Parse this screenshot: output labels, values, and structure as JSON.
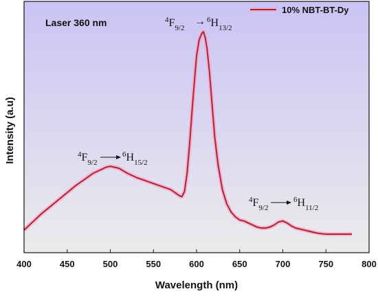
{
  "chart_data": {
    "type": "line",
    "title": "",
    "xlabel": "Wavelength (nm)",
    "ylabel": "Intensity (a.u)",
    "xlim": [
      400,
      800
    ],
    "ylim": [
      0,
      100
    ],
    "x_ticks": [
      400,
      450,
      500,
      550,
      600,
      650,
      700,
      750,
      800
    ],
    "y_ticks_visible": false,
    "grid": false,
    "legend_position": "top-right",
    "colors": {
      "line": "#a52a2a",
      "glow": "#ff9ecf",
      "bg_top": "#c9c4f4",
      "bg_bottom": "#ebebeb"
    },
    "series": [
      {
        "name": "10% NBT-BT-Dy",
        "x": [
          400,
          410,
          420,
          430,
          440,
          450,
          460,
          470,
          480,
          490,
          495,
          500,
          505,
          510,
          520,
          530,
          540,
          550,
          560,
          570,
          575,
          580,
          583,
          586,
          589,
          592,
          595,
          598,
          600,
          603,
          606,
          608,
          610,
          612,
          615,
          618,
          621,
          625,
          630,
          635,
          640,
          645,
          650,
          655,
          660,
          665,
          670,
          675,
          680,
          685,
          690,
          695,
          700,
          705,
          710,
          715,
          720,
          725,
          730,
          735,
          740,
          745,
          750,
          760,
          770,
          780
        ],
        "y": [
          2,
          6,
          10,
          13.5,
          17,
          20.5,
          24,
          27,
          30,
          32,
          33,
          33.5,
          33,
          32.5,
          30,
          28,
          26.5,
          25,
          23.5,
          22,
          20.5,
          19,
          18.5,
          21,
          30,
          45,
          62,
          78,
          88,
          96,
          99,
          100,
          97,
          92,
          80,
          64,
          48,
          34,
          22,
          15,
          11,
          8.5,
          7,
          6.5,
          5.5,
          4.5,
          3.5,
          3,
          3,
          3.5,
          4.5,
          6,
          6.5,
          5.5,
          4,
          3,
          2.5,
          2,
          1.5,
          1,
          0.5,
          0.2,
          0,
          0,
          0,
          0
        ]
      }
    ],
    "annotations": [
      {
        "text": "Laser 360 nm"
      },
      {
        "base": "F",
        "sup": "4",
        "sub": "9/2",
        "arrow": "→",
        "base2": "H",
        "sup2": "6",
        "sub2": "13/2",
        "x": 608,
        "y": 100
      },
      {
        "base": "F",
        "sup": "4",
        "sub": "9/2",
        "arrow": "→",
        "base2": "H",
        "sup2": "6",
        "sub2": "15/2",
        "x": 500,
        "y": 33.5
      },
      {
        "base": "F",
        "sup": "4",
        "sub": "9/2",
        "arrow": "→",
        "base2": "H",
        "sup2": "6",
        "sub2": "11/2",
        "x": 700,
        "y": 6.5
      }
    ]
  }
}
